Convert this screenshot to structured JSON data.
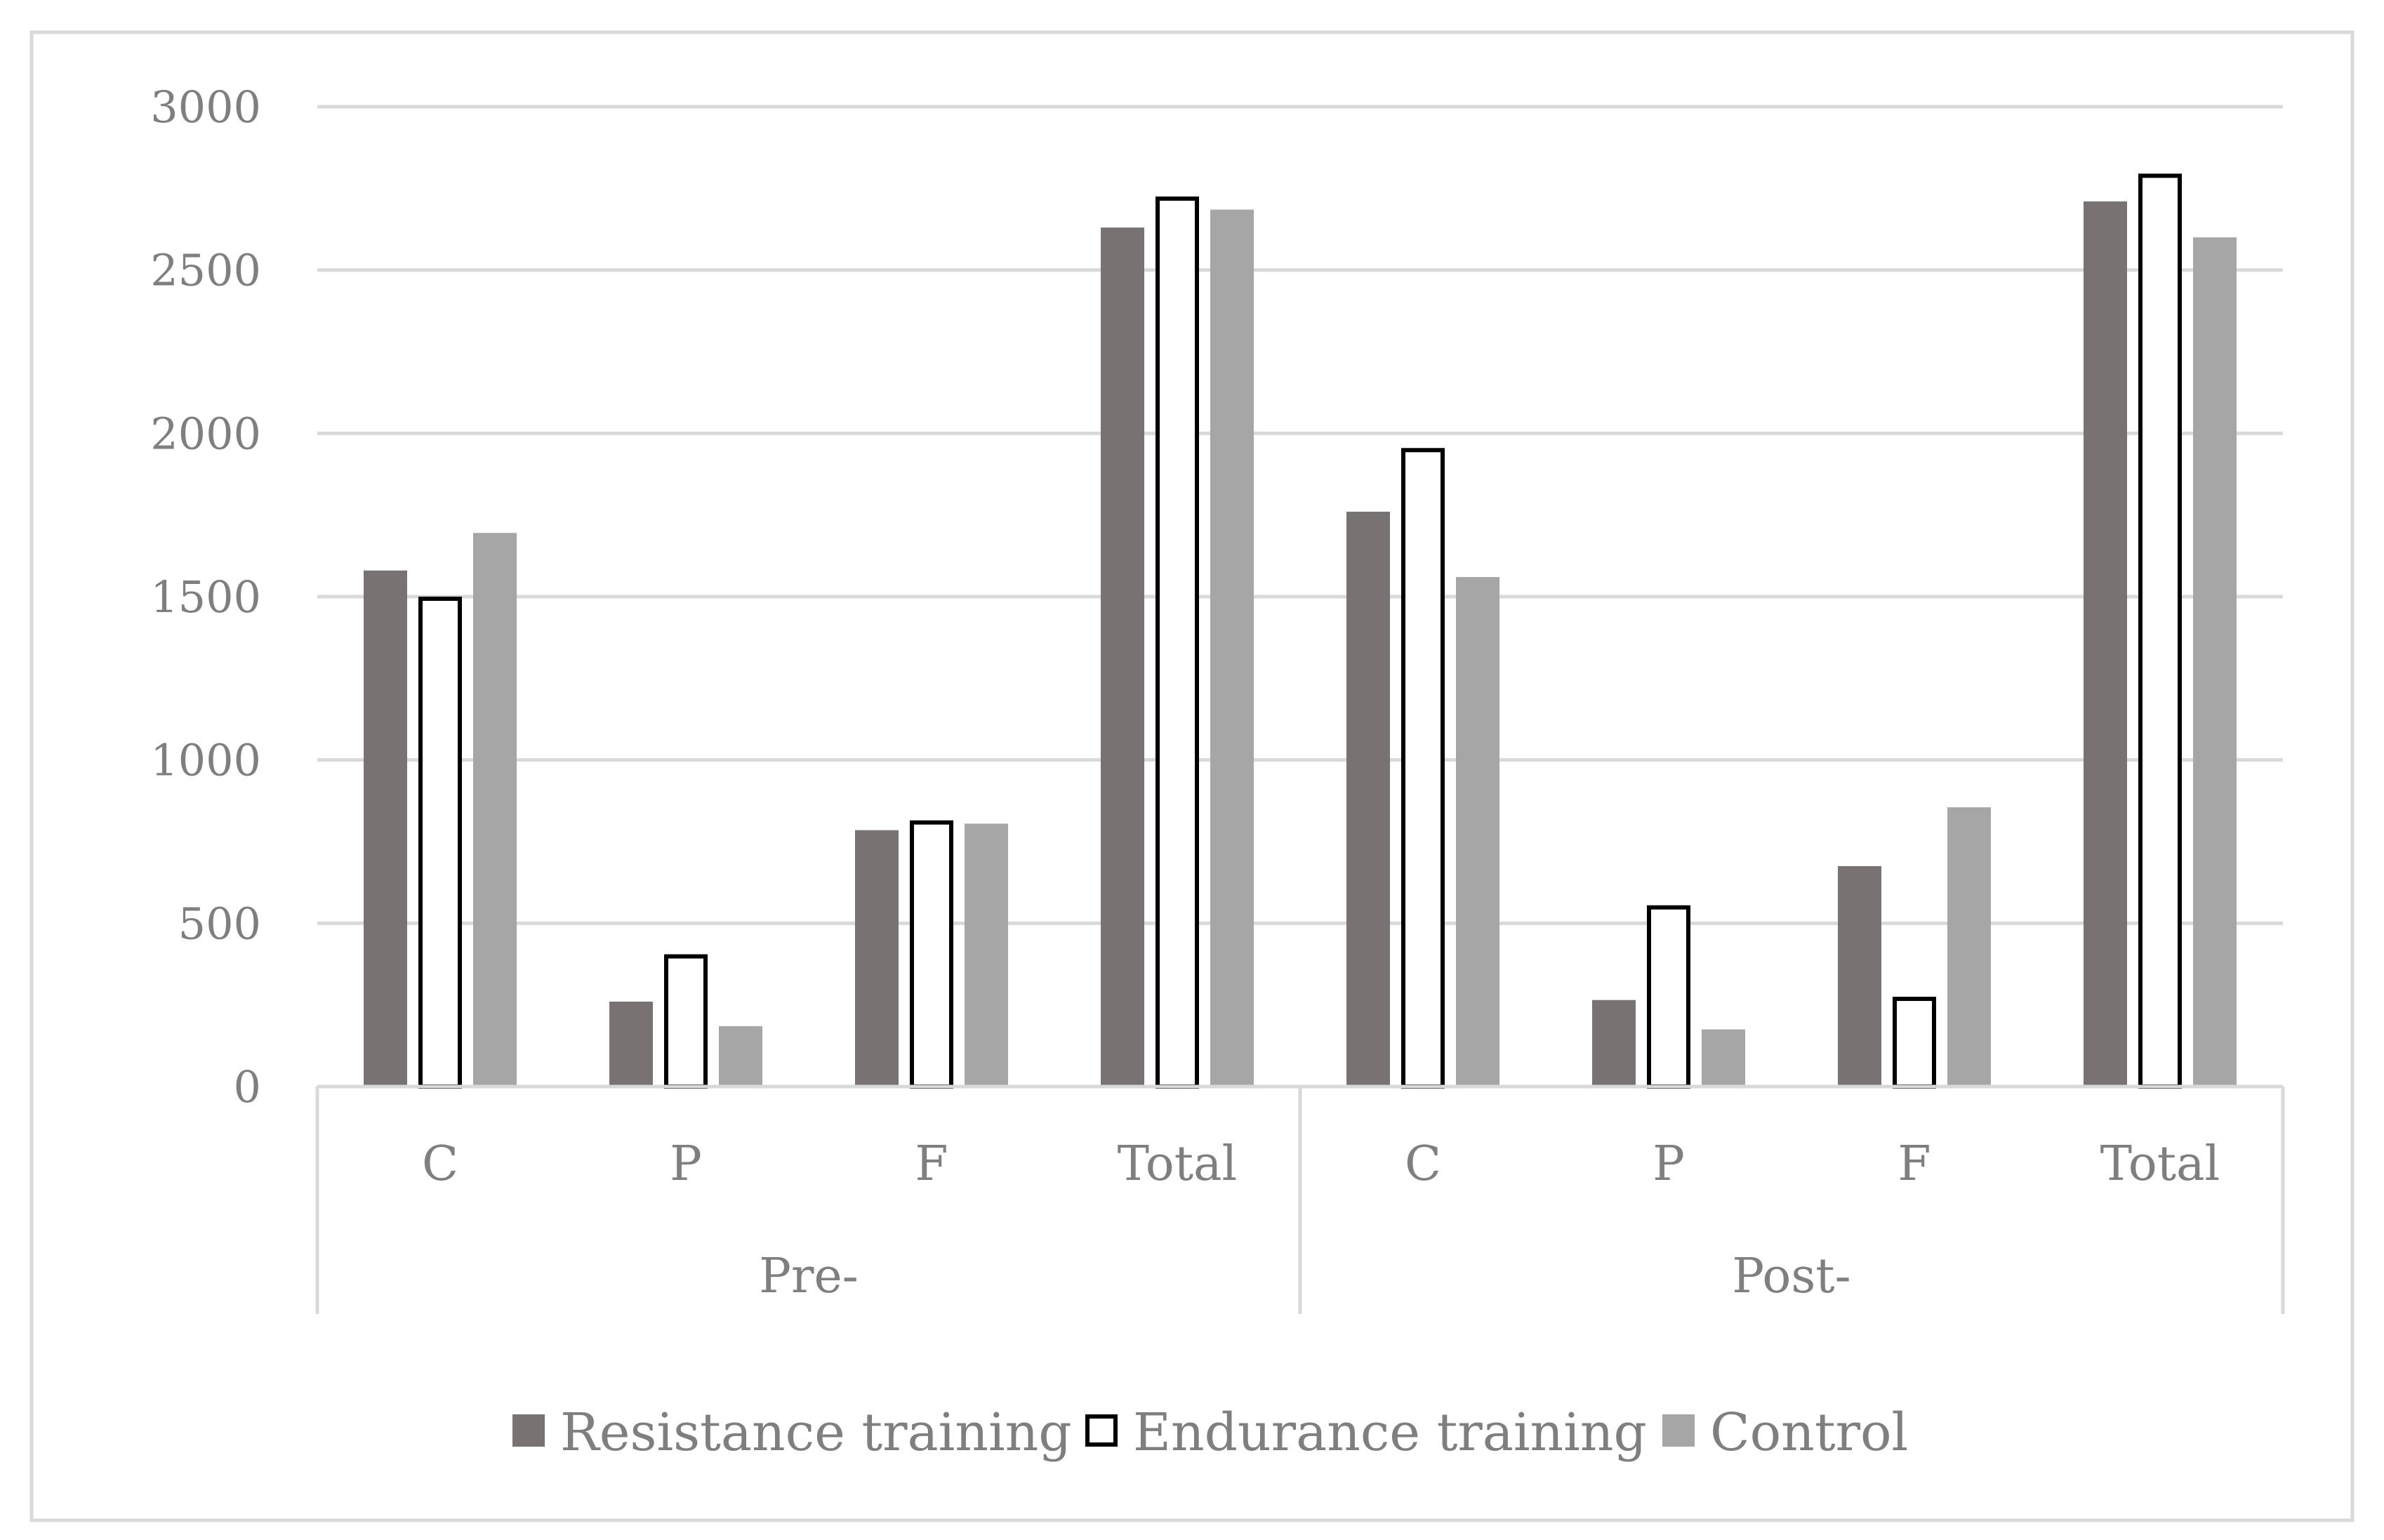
{
  "chart_data": {
    "type": "bar",
    "title": "",
    "xlabel": "",
    "ylabel": "",
    "ylim": [
      0,
      3000
    ],
    "yticks": [
      0,
      500,
      1000,
      1500,
      2000,
      2500,
      3000
    ],
    "grid": true,
    "legend_position": "bottom",
    "groups": [
      {
        "label": "Pre-",
        "categories": [
          "C",
          "P",
          "F",
          "Total"
        ]
      },
      {
        "label": "Post-",
        "categories": [
          "C",
          "P",
          "F",
          "Total"
        ]
      }
    ],
    "categories": [
      "C",
      "P",
      "F",
      "Total",
      "C",
      "P",
      "F",
      "Total"
    ],
    "series": [
      {
        "name": "Resistance training",
        "color": "#787372",
        "values": [
          1580,
          260,
          785,
          2630,
          1760,
          265,
          675,
          2710
        ]
      },
      {
        "name": "Endurance training",
        "color": "#ffffff",
        "stroke": "#000000",
        "values": [
          1500,
          405,
          815,
          2725,
          1955,
          555,
          275,
          2795
        ]
      },
      {
        "name": "Control",
        "color": "#a6a6a6",
        "values": [
          1695,
          185,
          805,
          2685,
          1560,
          175,
          855,
          2600
        ]
      }
    ]
  }
}
